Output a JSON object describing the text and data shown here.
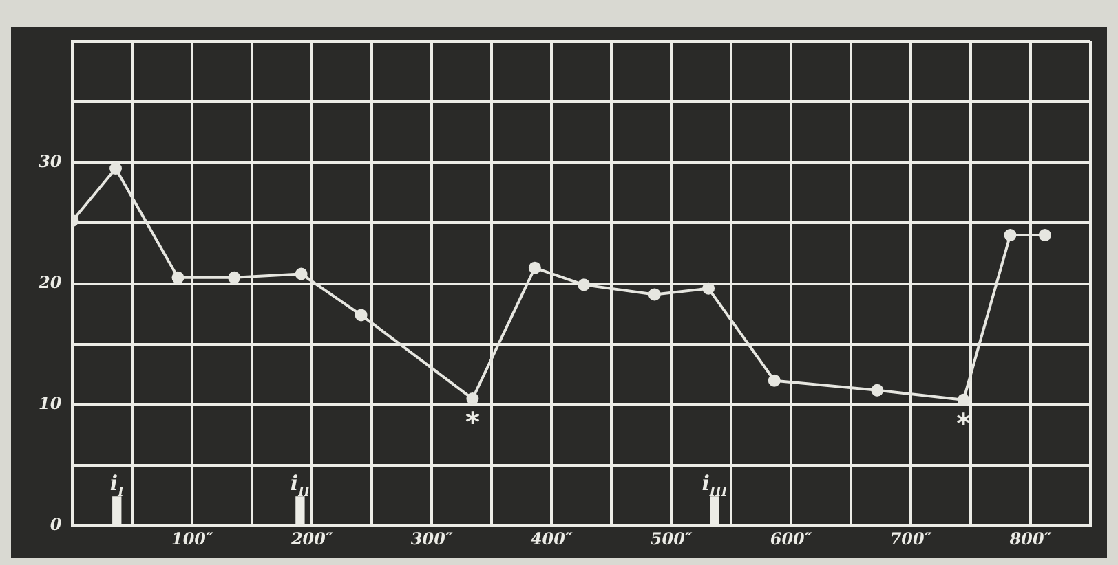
{
  "chart_data": {
    "type": "line",
    "x": [
      0,
      36,
      88,
      135,
      191,
      241,
      334,
      386,
      427,
      486,
      531,
      586,
      672,
      744,
      783,
      812
    ],
    "series": [
      {
        "type": "bar",
        "color": "#ecece6",
        "x": [
          37,
          190,
          536
        ],
        "values": [
          2.4,
          2.4,
          2.4
        ],
        "value_labels": [
          "i$_{I}$",
          "i$_{II}$",
          "i$_{III}$"
        ]
      },
      {
        "color": "#e6e6e0",
        "values": [
          25.2,
          29.5,
          20.5,
          20.5,
          20.8,
          17.4,
          10.5,
          21.3,
          19.9,
          19.1,
          19.6,
          12,
          11.2,
          10.4,
          24,
          24
        ]
      }
    ],
    "xlim": [
      0,
      850
    ],
    "xticks": [
      {
        "value": 0,
        "label": null
      },
      {
        "value": 50,
        "label": null
      },
      {
        "value": 100,
        "label": "100″"
      },
      {
        "value": 150,
        "label": null
      },
      {
        "value": 200,
        "label": "200″"
      },
      {
        "value": 250,
        "label": null
      },
      {
        "value": 300,
        "label": "300″"
      },
      {
        "value": 350,
        "label": null
      },
      {
        "value": 400,
        "label": "400″"
      },
      {
        "value": 450,
        "label": null
      },
      {
        "value": 500,
        "label": "500″"
      },
      {
        "value": 550,
        "label": null
      },
      {
        "value": 600,
        "label": "600″"
      },
      {
        "value": 650,
        "label": null
      },
      {
        "value": 700,
        "label": "700″"
      },
      {
        "value": 750,
        "label": null
      },
      {
        "value": 800,
        "label": "800″"
      },
      {
        "value": 850,
        "label": null
      }
    ],
    "ylim": [
      0,
      40
    ],
    "yticks": [
      0,
      {
        "value": 5,
        "label": null
      },
      10,
      {
        "value": 15,
        "label": null
      },
      20,
      {
        "value": 25,
        "label": null
      },
      30,
      {
        "value": 35,
        "label": null
      },
      {
        "value": 40,
        "label": null
      }
    ],
    "grid": true,
    "marker": "circle",
    "line_style": "solid",
    "legend": false,
    "annotations": [
      {
        "text": "*",
        "x": 334,
        "y": 10.5
      },
      {
        "text": "*",
        "x": 744,
        "y": 10.4
      }
    ]
  }
}
